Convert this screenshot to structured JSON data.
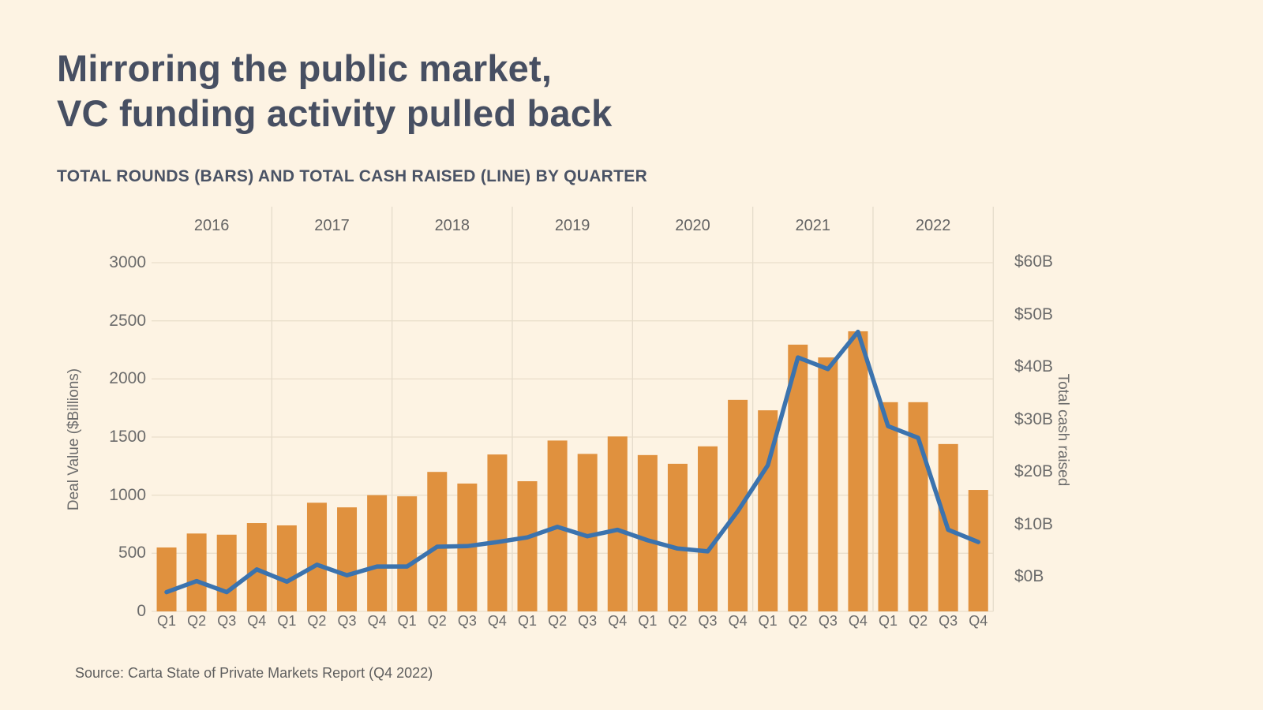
{
  "page": {
    "title_line1": "Mirroring the public market,",
    "title_line2": "VC funding activity pulled back",
    "subtitle": "TOTAL ROUNDS (BARS) AND TOTAL CASH RAISED (LINE) BY QUARTER",
    "source": "Source: Carta State of Private Markets Report (Q4 2022)"
  },
  "chart_data": {
    "type": "combo",
    "subtypes": [
      "bar",
      "line"
    ],
    "title": "Mirroring the public market, VC funding activity pulled back",
    "subtitle": "TOTAL ROUNDS (BARS) AND TOTAL CASH RAISED (LINE) BY QUARTER",
    "years": [
      "2016",
      "2017",
      "2018",
      "2019",
      "2020",
      "2021",
      "2022"
    ],
    "quarter_labels": [
      "Q1",
      "Q2",
      "Q3",
      "Q4",
      "Q1",
      "Q2",
      "Q3",
      "Q4",
      "Q1",
      "Q2",
      "Q3",
      "Q4",
      "Q1",
      "Q2",
      "Q3",
      "Q4",
      "Q1",
      "Q2",
      "Q3",
      "Q4",
      "Q1",
      "Q2",
      "Q3",
      "Q4",
      "Q1",
      "Q2",
      "Q3",
      "Q4"
    ],
    "series": [
      {
        "name": "Total rounds",
        "type": "bar",
        "axis": "left",
        "values": [
          550,
          670,
          660,
          760,
          740,
          935,
          895,
          1000,
          990,
          1200,
          1100,
          1350,
          1120,
          1470,
          1355,
          1505,
          1345,
          1270,
          1420,
          1820,
          1730,
          2295,
          2185,
          2410,
          1800,
          1800,
          1440,
          1045
        ]
      },
      {
        "name": "Total cash raised ($B)",
        "type": "line",
        "axis": "right",
        "values": [
          3.3,
          5.2,
          3.3,
          7.2,
          5.1,
          8.0,
          6.2,
          7.7,
          7.7,
          11.1,
          11.2,
          11.9,
          12.7,
          14.5,
          12.9,
          14.0,
          12.2,
          10.8,
          10.3,
          17.2,
          25.1,
          43.6,
          41.6,
          48.0,
          31.8,
          29.8,
          14.0,
          11.9
        ]
      }
    ],
    "left_axis": {
      "label": "Deal Value ($Billions)",
      "ticks": [
        0,
        500,
        1000,
        1500,
        2000,
        2500,
        3000
      ],
      "range": [
        0,
        3000
      ],
      "grid": true
    },
    "right_axis": {
      "label": "Total cash raised",
      "ticks": [
        "$0B",
        "$10B",
        "$20B",
        "$30B",
        "$40B",
        "$50B",
        "$60B"
      ],
      "range_billions": [
        0,
        60
      ]
    },
    "colors": {
      "background": "#FDF3E3",
      "bar": "#E0913E",
      "line": "#3B73AE",
      "title": "#474F62",
      "axis_text": "#6B6B6B",
      "gridline": "#EADFCC",
      "year_separator": "#E5DCCB"
    },
    "legend_position": "none"
  }
}
